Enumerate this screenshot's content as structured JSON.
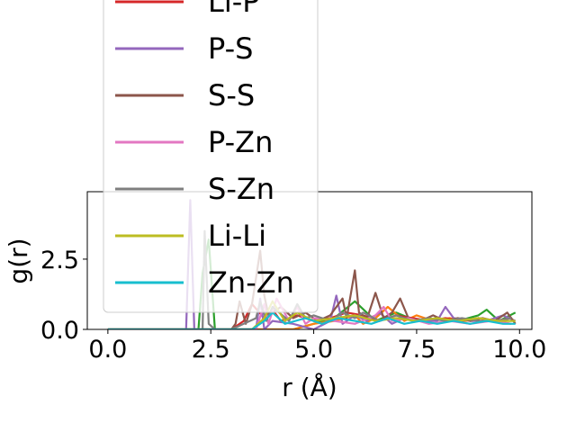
{
  "chart_data": {
    "type": "line",
    "xlabel": "r (Å)",
    "ylabel": "g(r)",
    "xlim": [
      -0.5,
      10.3
    ],
    "ylim": [
      0,
      4.9
    ],
    "xticks": [
      {
        "value": 0.0,
        "label": "0.0"
      },
      {
        "value": 2.5,
        "label": "2.5"
      },
      {
        "value": 5.0,
        "label": "5.0"
      },
      {
        "value": 7.5,
        "label": "7.5"
      },
      {
        "value": 10.0,
        "label": "10.0"
      }
    ],
    "yticks": [
      {
        "value": 0.0,
        "label": "0.0"
      },
      {
        "value": 2.5,
        "label": "2.5"
      }
    ],
    "legend_position": "upper-left (overflowing top of axes)",
    "series": [
      {
        "name": "Li-P",
        "color": "#d62728",
        "x": [
          0,
          1.0,
          2.0,
          3.0,
          3.3,
          3.5,
          3.8,
          4.0,
          4.2,
          4.6,
          5.0,
          5.4,
          5.8,
          6.2,
          6.6,
          7.0,
          7.4,
          7.8,
          8.2,
          8.6,
          9.0,
          9.4,
          9.8
        ],
        "y": [
          0,
          0,
          0,
          0,
          0.3,
          0.9,
          0.4,
          0.7,
          0.3,
          0.5,
          0.3,
          0.4,
          0.6,
          0.5,
          0.3,
          0.5,
          0.4,
          0.3,
          0.4,
          0.3,
          0.4,
          0.3,
          0.4
        ]
      },
      {
        "name": "P-S",
        "color": "#9467bd",
        "x": [
          0,
          1.5,
          1.9,
          2.0,
          2.1,
          2.3,
          3.0,
          3.6,
          3.7,
          3.8,
          4.0,
          4.5,
          5.0,
          5.4,
          5.55,
          5.7,
          6.0,
          6.3,
          6.6,
          6.9,
          7.2,
          7.6,
          8.0,
          8.2,
          8.4,
          8.8,
          9.2,
          9.6,
          9.9
        ],
        "y": [
          0,
          0,
          0,
          4.6,
          0,
          0,
          0,
          0,
          1.1,
          0,
          0.3,
          0.2,
          0,
          0.3,
          1.2,
          0.2,
          0.5,
          0.3,
          0.6,
          0.2,
          0.4,
          0.3,
          0.3,
          0.8,
          0.4,
          0.3,
          0.3,
          0.5,
          0.3
        ]
      },
      {
        "name": "S-S",
        "color": "#8c564b",
        "x": [
          0,
          3.0,
          3.1,
          3.2,
          3.35,
          3.5,
          3.7,
          3.8,
          3.9,
          4.2,
          4.5,
          4.8,
          5.1,
          5.4,
          5.7,
          5.8,
          6.0,
          6.1,
          6.3,
          6.5,
          6.7,
          6.9,
          7.1,
          7.3,
          7.6,
          7.9,
          8.2,
          8.5,
          8.8,
          9.1,
          9.4,
          9.7,
          9.9
        ],
        "y": [
          0,
          0,
          0.2,
          1.0,
          0.2,
          0.9,
          2.8,
          1.2,
          0.5,
          0.8,
          0.4,
          0.6,
          0.3,
          0.5,
          1.1,
          0.4,
          2.1,
          0.6,
          0.4,
          1.3,
          0.4,
          0.6,
          1.1,
          0.4,
          0.3,
          0.5,
          0.3,
          0.4,
          0.3,
          0.4,
          0.3,
          0.6,
          0.2
        ]
      },
      {
        "name": "P-Zn",
        "color": "#e377c2",
        "x": [
          0,
          3.6,
          3.8,
          3.9,
          4.1,
          4.4,
          4.6,
          4.8,
          5.0,
          5.5,
          6.0,
          6.5,
          6.7,
          6.9,
          7.3,
          7.8,
          8.3,
          8.8,
          9.3,
          9.8
        ],
        "y": [
          0,
          0,
          0.9,
          0.2,
          1.1,
          0.3,
          0.8,
          0.2,
          0.4,
          0.3,
          0.2,
          0.5,
          0.8,
          0.3,
          0.4,
          0.2,
          0.3,
          0.2,
          0.3,
          0.2
        ]
      },
      {
        "name": "S-Zn",
        "color": "#7f7f7f",
        "x": [
          0,
          2.3,
          2.35,
          2.45,
          2.6,
          3.0,
          3.6,
          3.7,
          3.85,
          4.0,
          4.4,
          4.6,
          4.8,
          5.0,
          5.4,
          5.7,
          6.0,
          6.2,
          6.6,
          7.0,
          7.4,
          7.8,
          8.2,
          8.6,
          9.0,
          9.4,
          9.8
        ],
        "y": [
          0,
          0,
          3.5,
          0.2,
          0,
          0,
          0.4,
          1.0,
          0.3,
          0.8,
          0.3,
          0.9,
          0.4,
          0.5,
          0.3,
          0.6,
          0.4,
          0.6,
          0.3,
          0.5,
          0.3,
          0.4,
          0.3,
          0.4,
          0.3,
          0.3,
          0.4
        ]
      },
      {
        "name": "Li-Li",
        "color": "#bcbd22",
        "x": [
          0,
          3.5,
          3.8,
          4.0,
          4.3,
          4.6,
          5.0,
          5.5,
          6.0,
          6.5,
          7.0,
          7.5,
          8.0,
          8.5,
          9.0,
          9.5,
          9.9
        ],
        "y": [
          0,
          0,
          0.4,
          1.0,
          0.3,
          0.6,
          0.3,
          0.4,
          0.5,
          0.3,
          0.4,
          0.3,
          0.4,
          0.3,
          0.4,
          0.3,
          0.3
        ]
      },
      {
        "name": "Zn-Zn",
        "color": "#17becf",
        "x": [
          0,
          3.5,
          3.8,
          4.0,
          4.3,
          4.8,
          5.2,
          5.6,
          6.0,
          6.4,
          6.8,
          7.2,
          7.6,
          8.0,
          8.4,
          8.8,
          9.2,
          9.6,
          9.9
        ],
        "y": [
          0,
          0,
          0.3,
          0.6,
          0.2,
          0.4,
          0.2,
          0.4,
          0.3,
          0.2,
          0.4,
          0.2,
          0.3,
          0.2,
          0.3,
          0.2,
          0.3,
          0.2,
          0.2
        ]
      },
      {
        "name": "",
        "color": "#2ca02c",
        "in_legend": false,
        "x": [
          0,
          2.2,
          2.3,
          2.45,
          2.6,
          3.0,
          4.5,
          5.0,
          5.5,
          6.0,
          6.5,
          7.0,
          7.5,
          8.0,
          8.5,
          9.0,
          9.2,
          9.5,
          9.9
        ],
        "y": [
          0,
          0,
          2.0,
          3.2,
          0,
          0,
          0,
          0.2,
          0.4,
          1.0,
          0.3,
          0.6,
          0.3,
          0.4,
          0.3,
          0.5,
          0.7,
          0.3,
          0.6
        ]
      },
      {
        "name": "",
        "color": "#ff7f0e",
        "in_legend": false,
        "x": [
          0,
          4.5,
          5.0,
          5.5,
          6.0,
          6.2,
          6.5,
          6.8,
          7.2,
          7.5,
          7.9,
          8.3,
          8.7,
          9.0,
          9.4,
          9.8
        ],
        "y": [
          0,
          0,
          0.2,
          0.3,
          0.5,
          0.2,
          0.4,
          0.8,
          0.3,
          0.5,
          0.3,
          0.4,
          0.3,
          0.4,
          0.3,
          0.2
        ]
      }
    ]
  }
}
